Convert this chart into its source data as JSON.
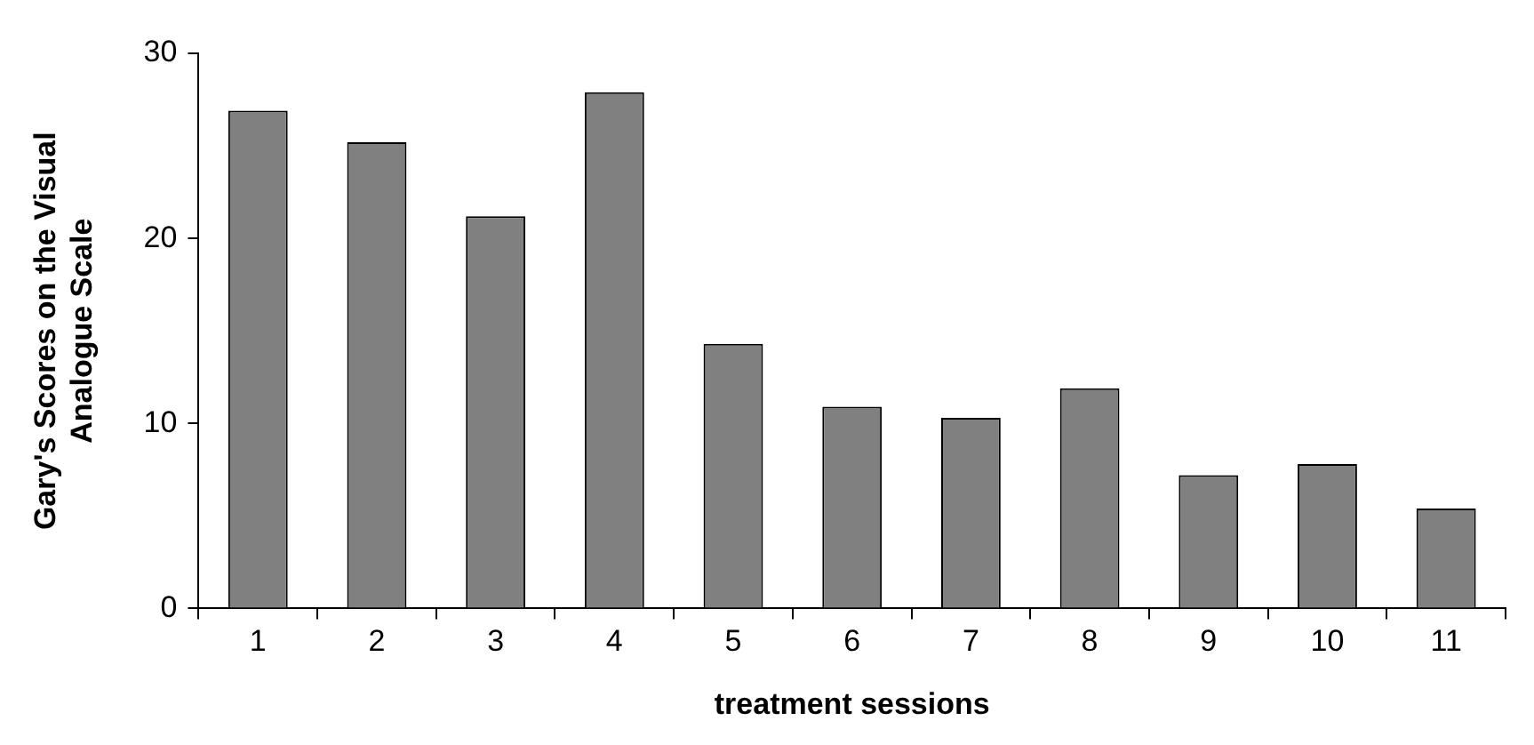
{
  "chart_data": {
    "type": "bar",
    "xlabel": "treatment sessions",
    "ylabel": "Gary's Scores on the Visual Analogue Scale",
    "categories": [
      "1",
      "2",
      "3",
      "4",
      "5",
      "6",
      "7",
      "8",
      "9",
      "10",
      "11"
    ],
    "values": [
      26.9,
      25.2,
      21.2,
      27.9,
      14.3,
      10.9,
      10.3,
      11.9,
      7.2,
      7.8,
      5.4
    ],
    "color": "#808080",
    "ylim": [
      0,
      30
    ],
    "yticks": [
      0,
      10,
      20,
      30
    ],
    "grid": false,
    "legend": false
  }
}
